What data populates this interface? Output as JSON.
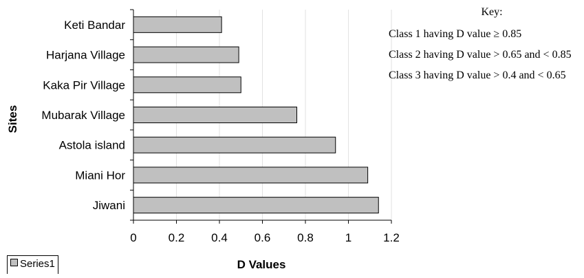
{
  "chart_data": {
    "type": "bar",
    "orientation": "horizontal",
    "categories": [
      "Keti Bandar",
      "Harjana Village",
      "Kaka Pir Village",
      "Mubarak Village",
      "Astola island",
      "Miani Hor",
      "Jiwani"
    ],
    "series": [
      {
        "name": "Series1",
        "values": [
          0.41,
          0.49,
          0.5,
          0.76,
          0.94,
          1.09,
          1.14
        ]
      }
    ],
    "xlabel": "D Values",
    "ylabel": "Sites",
    "xlim": [
      0,
      1.2
    ],
    "xticks": [
      "0",
      "0.2",
      "0.4",
      "0.6",
      "0.8",
      "1",
      "1.2"
    ],
    "grid": true,
    "bar_color": "#c0c0c0",
    "legend_position": "bottom-left"
  },
  "key": {
    "title": "Key:",
    "items": [
      "Class 1 having D value ≥ 0.85",
      "Class 2 having D value > 0.65 and < 0.85",
      "Class 3 having D value > 0.4 and < 0.65"
    ]
  }
}
